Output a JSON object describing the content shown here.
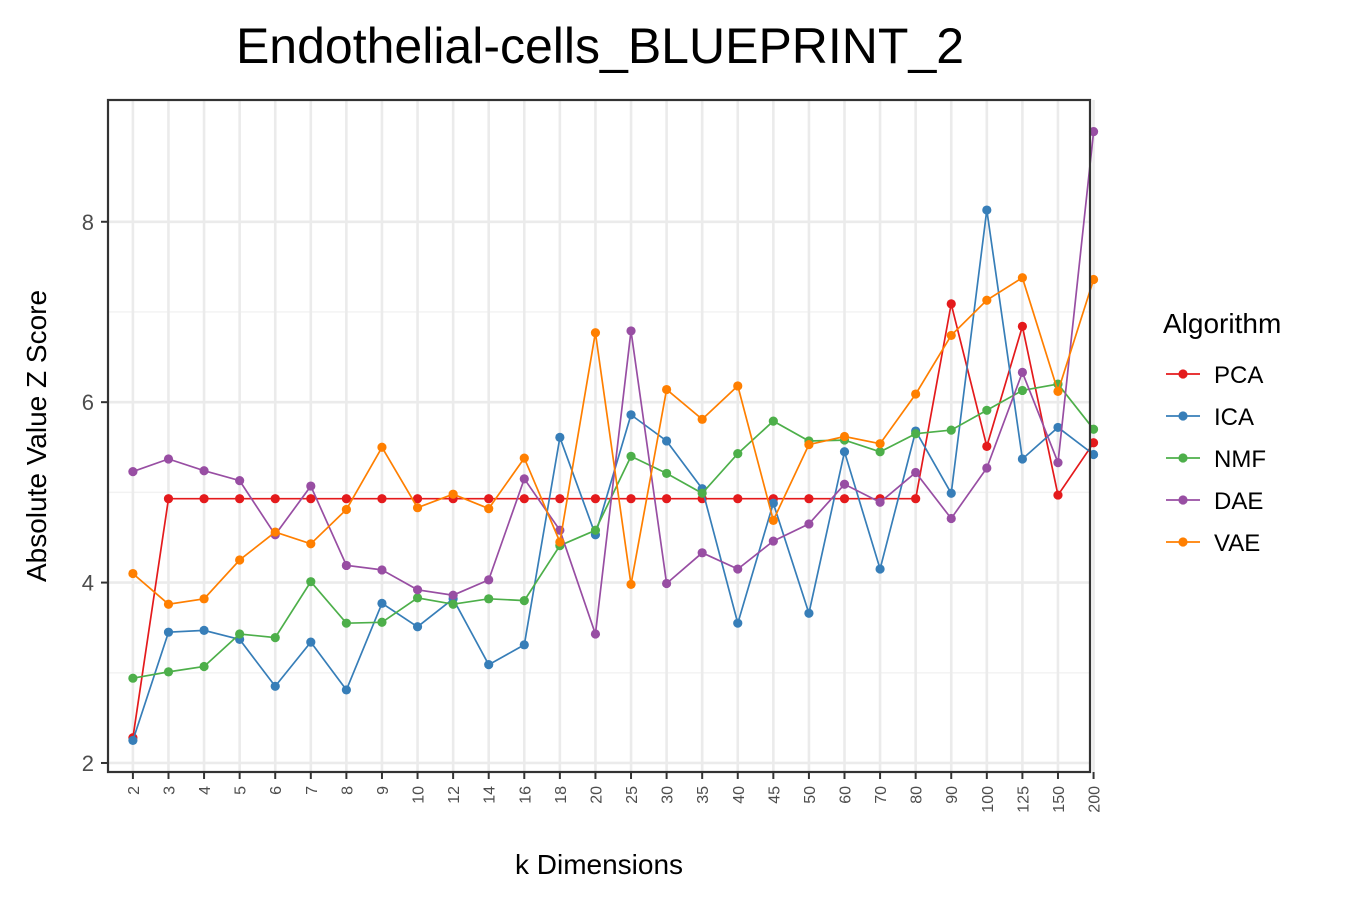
{
  "chart_data": {
    "type": "line",
    "title": "Endothelial-cells_BLUEPRINT_2",
    "xlabel": "k Dimensions",
    "ylabel": "Absolute Value Z Score",
    "categories": [
      "2",
      "3",
      "4",
      "5",
      "6",
      "7",
      "8",
      "9",
      "10",
      "12",
      "14",
      "16",
      "18",
      "20",
      "25",
      "30",
      "35",
      "40",
      "45",
      "50",
      "60",
      "70",
      "80",
      "90",
      "100",
      "125",
      "150",
      "200"
    ],
    "yticks": [
      2,
      4,
      6,
      8
    ],
    "ylim": [
      1.9,
      9.35
    ],
    "grid": true,
    "legend": {
      "title": "Algorithm",
      "placement": "right"
    },
    "series": [
      {
        "name": "PCA",
        "color": "#E41A1C",
        "values": [
          2.28,
          4.93,
          4.93,
          4.93,
          4.93,
          4.93,
          4.93,
          4.93,
          4.93,
          4.93,
          4.93,
          4.93,
          4.93,
          4.93,
          4.93,
          4.93,
          4.93,
          4.93,
          4.93,
          4.93,
          4.93,
          4.93,
          4.93,
          7.09,
          5.51,
          6.84,
          4.97,
          5.55
        ]
      },
      {
        "name": "ICA",
        "color": "#377EB8",
        "values": [
          2.25,
          3.45,
          3.47,
          3.37,
          2.85,
          3.34,
          2.81,
          3.77,
          3.51,
          3.82,
          3.09,
          3.31,
          5.61,
          4.53,
          5.86,
          5.57,
          5.04,
          3.55,
          4.88,
          3.66,
          5.45,
          4.15,
          5.68,
          4.99,
          8.13,
          5.37,
          5.72,
          5.42
        ]
      },
      {
        "name": "NMF",
        "color": "#4DAF4A",
        "values": [
          2.94,
          3.01,
          3.07,
          3.43,
          3.39,
          4.01,
          3.55,
          3.56,
          3.83,
          3.76,
          3.82,
          3.8,
          4.41,
          4.58,
          5.4,
          5.21,
          4.99,
          5.43,
          5.79,
          5.57,
          5.58,
          5.45,
          5.65,
          5.69,
          5.91,
          6.13,
          6.2,
          5.7
        ]
      },
      {
        "name": "DAE",
        "color": "#984EA3",
        "values": [
          5.23,
          5.37,
          5.24,
          5.13,
          4.53,
          5.07,
          4.19,
          4.14,
          3.92,
          3.86,
          4.03,
          5.15,
          4.58,
          3.43,
          6.79,
          3.99,
          4.33,
          4.15,
          4.46,
          4.65,
          5.09,
          4.89,
          5.22,
          4.71,
          5.27,
          6.33,
          5.33,
          9.0
        ]
      },
      {
        "name": "VAE",
        "color": "#FF7F00",
        "values": [
          4.1,
          3.76,
          3.82,
          4.25,
          4.56,
          4.43,
          4.81,
          5.5,
          4.83,
          4.98,
          4.82,
          5.38,
          4.45,
          6.77,
          3.98,
          6.14,
          5.81,
          6.18,
          4.69,
          5.53,
          5.62,
          5.54,
          6.09,
          6.74,
          7.13,
          7.38,
          6.12,
          7.36
        ]
      }
    ]
  }
}
